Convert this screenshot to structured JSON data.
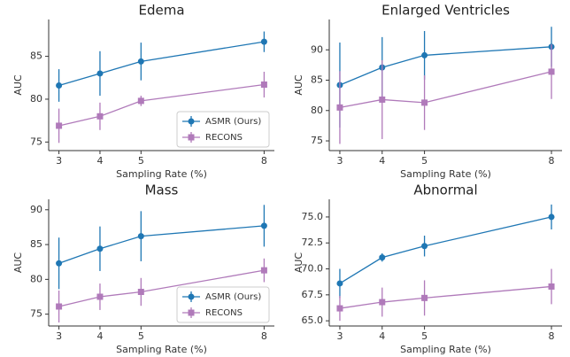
{
  "chart_data": [
    {
      "type": "line",
      "title": "Edema",
      "xlabel": "Sampling Rate (%)",
      "ylabel": "AUC",
      "x": [
        3,
        4,
        5,
        8
      ],
      "xlim": [
        2.75,
        8.25
      ],
      "xticks": [
        3,
        4,
        5,
        8
      ],
      "ylim": [
        74,
        89.3
      ],
      "yticks": [
        75,
        80,
        85
      ],
      "legend": "lower right",
      "series": [
        {
          "name": "ASMR (Ours)",
          "color": "#1f77b4",
          "marker": "circle",
          "values": [
            81.6,
            83.0,
            84.4,
            86.7
          ],
          "errors": [
            1.9,
            2.6,
            2.2,
            1.2
          ]
        },
        {
          "name": "RECONS",
          "color": "#b07aba",
          "marker": "square",
          "values": [
            76.9,
            78.0,
            79.8,
            81.7
          ],
          "errors": [
            2.0,
            1.6,
            0.6,
            1.5
          ]
        }
      ]
    },
    {
      "type": "line",
      "title": "Enlarged Ventricles",
      "xlabel": "Sampling Rate (%)",
      "ylabel": "AUC",
      "x": [
        3,
        4,
        5,
        8
      ],
      "xlim": [
        2.75,
        8.25
      ],
      "xticks": [
        3,
        4,
        5,
        8
      ],
      "ylim": [
        73.4,
        95
      ],
      "yticks": [
        75,
        80,
        85,
        90
      ],
      "legend": "none",
      "series": [
        {
          "name": "ASMR (Ours)",
          "color": "#1f77b4",
          "marker": "circle",
          "values": [
            84.2,
            87.1,
            89.1,
            90.5
          ],
          "errors": [
            7.0,
            5.0,
            4.0,
            3.3
          ]
        },
        {
          "name": "RECONS",
          "color": "#b07aba",
          "marker": "square",
          "values": [
            80.5,
            81.8,
            81.3,
            86.4
          ],
          "errors": [
            6.0,
            6.5,
            4.5,
            4.5
          ]
        }
      ]
    },
    {
      "type": "line",
      "title": "Mass",
      "xlabel": "Sampling Rate (%)",
      "ylabel": "AUC",
      "x": [
        3,
        4,
        5,
        8
      ],
      "xlim": [
        2.75,
        8.25
      ],
      "xticks": [
        3,
        4,
        5,
        8
      ],
      "ylim": [
        73.3,
        91.5
      ],
      "yticks": [
        75,
        80,
        85,
        90
      ],
      "legend": "lower right",
      "series": [
        {
          "name": "ASMR (Ours)",
          "color": "#1f77b4",
          "marker": "circle",
          "values": [
            82.3,
            84.4,
            86.2,
            87.7
          ],
          "errors": [
            3.7,
            3.2,
            3.6,
            3.0
          ]
        },
        {
          "name": "RECONS",
          "color": "#b07aba",
          "marker": "square",
          "values": [
            76.1,
            77.5,
            78.2,
            81.3
          ],
          "errors": [
            2.3,
            1.9,
            2.0,
            1.7
          ]
        }
      ]
    },
    {
      "type": "line",
      "title": "Abnormal",
      "xlabel": "Sampling Rate (%)",
      "ylabel": "AUC",
      "x": [
        3,
        4,
        5,
        8
      ],
      "xlim": [
        2.75,
        8.25
      ],
      "xticks": [
        3,
        4,
        5,
        8
      ],
      "ylim": [
        64.5,
        76.7
      ],
      "legend": "none",
      "yticks": [
        {
          "value": 65,
          "label": "65.0"
        },
        {
          "value": 67.5,
          "label": "67.5"
        },
        {
          "value": 70,
          "label": "70.0"
        },
        {
          "value": 72.5,
          "label": "72.5"
        },
        {
          "value": 75,
          "label": "75.0"
        }
      ],
      "series": [
        {
          "name": "ASMR (Ours)",
          "color": "#1f77b4",
          "marker": "circle",
          "values": [
            68.6,
            71.1,
            72.2,
            75.0
          ],
          "errors": [
            1.4,
            0.4,
            1.0,
            1.2
          ]
        },
        {
          "name": "RECONS",
          "color": "#b07aba",
          "marker": "square",
          "values": [
            66.2,
            66.8,
            67.2,
            68.3
          ],
          "errors": [
            1.2,
            1.4,
            1.7,
            1.7
          ]
        }
      ]
    }
  ]
}
